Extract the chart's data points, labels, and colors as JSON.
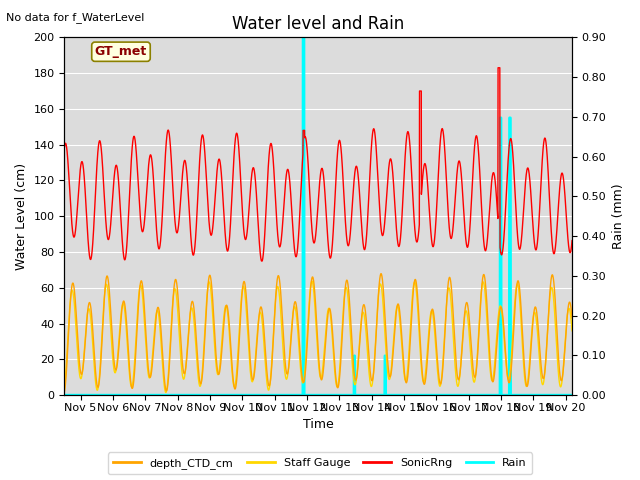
{
  "title": "Water level and Rain",
  "top_left_text": "No data for f_WaterLevel",
  "annotation_text": "GT_met",
  "xlabel": "Time",
  "ylabel_left": "Water Level (cm)",
  "ylabel_right": "Rain (mm)",
  "ylim_left": [
    0,
    200
  ],
  "ylim_right": [
    0,
    0.9
  ],
  "yticks_left": [
    0,
    20,
    40,
    60,
    80,
    100,
    120,
    140,
    160,
    180,
    200
  ],
  "yticks_right": [
    0.0,
    0.1,
    0.2,
    0.3,
    0.4,
    0.5,
    0.6,
    0.7,
    0.8,
    0.9
  ],
  "xstart": 4.5,
  "xend": 20.2,
  "xtick_labels": [
    "Nov 5",
    "Nov 6",
    "Nov 7",
    "Nov 8",
    "Nov 9",
    "Nov 10",
    "Nov 11",
    "Nov 12",
    "Nov 13",
    "Nov 14",
    "Nov 15",
    "Nov 16",
    "Nov 17",
    "Nov 18",
    "Nov 19",
    "Nov 20"
  ],
  "xtick_positions": [
    5,
    6,
    7,
    8,
    9,
    10,
    11,
    12,
    13,
    14,
    15,
    16,
    17,
    18,
    19,
    20
  ],
  "color_CTD": "#FFA500",
  "color_staff": "#FFD700",
  "color_sonic": "#FF0000",
  "color_rain": "#00FFFF",
  "background_gray": "#DCDCDC",
  "fig_background": "#FFFFFF",
  "legend_labels": [
    "depth_CTD_cm",
    "Staff Gauge",
    "SonicRng",
    "Rain"
  ],
  "legend_colors": [
    "#FFA500",
    "#FFD700",
    "#FF0000",
    "#00FFFF"
  ]
}
